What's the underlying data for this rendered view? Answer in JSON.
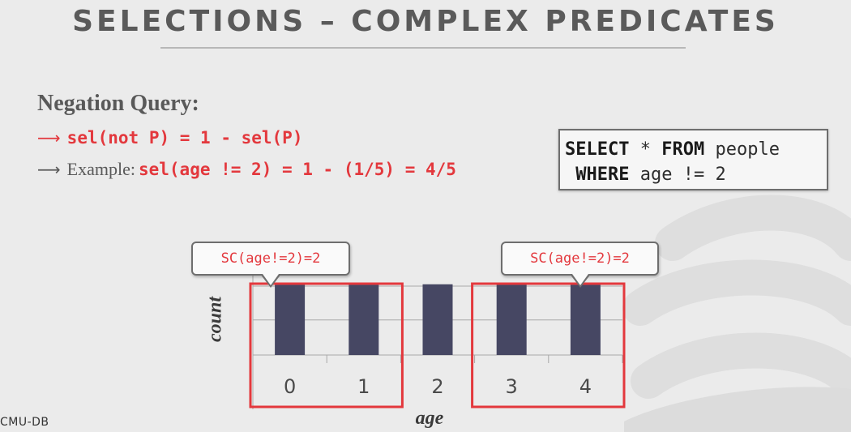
{
  "title": "SELECTIONS – COMPLEX PREDICATES",
  "heading": "Negation Query:",
  "bullets": [
    {
      "prefix": "",
      "code": "sel(not P) = 1 - sel(P)"
    },
    {
      "prefix": "Example:",
      "code": "sel(age != 2) = 1 - (1/5) = 4/5"
    }
  ],
  "sql": {
    "line1": {
      "kw1": "SELECT",
      "mid": " * ",
      "kw2": "FROM",
      "rest": " people"
    },
    "line2": {
      "kw": "WHERE",
      "rest": " age != 2"
    }
  },
  "callouts": [
    "SC(age!=2)=2",
    "SC(age!=2)=2"
  ],
  "chart_data": {
    "type": "bar",
    "categories": [
      "0",
      "1",
      "2",
      "3",
      "4"
    ],
    "values": [
      1,
      1,
      1,
      1,
      1
    ],
    "xlabel": "age",
    "ylabel": "count",
    "ylim": [
      0,
      1.6
    ],
    "grid": true,
    "highlight_groups": [
      [
        "0",
        "1"
      ],
      [
        "3",
        "4"
      ]
    ],
    "bar_color": "#464763",
    "highlight_color": "#e3383d"
  },
  "footer": "CMU-DB",
  "colors": {
    "accent": "#e3383d",
    "text": "#595959",
    "bar": "#464763"
  }
}
